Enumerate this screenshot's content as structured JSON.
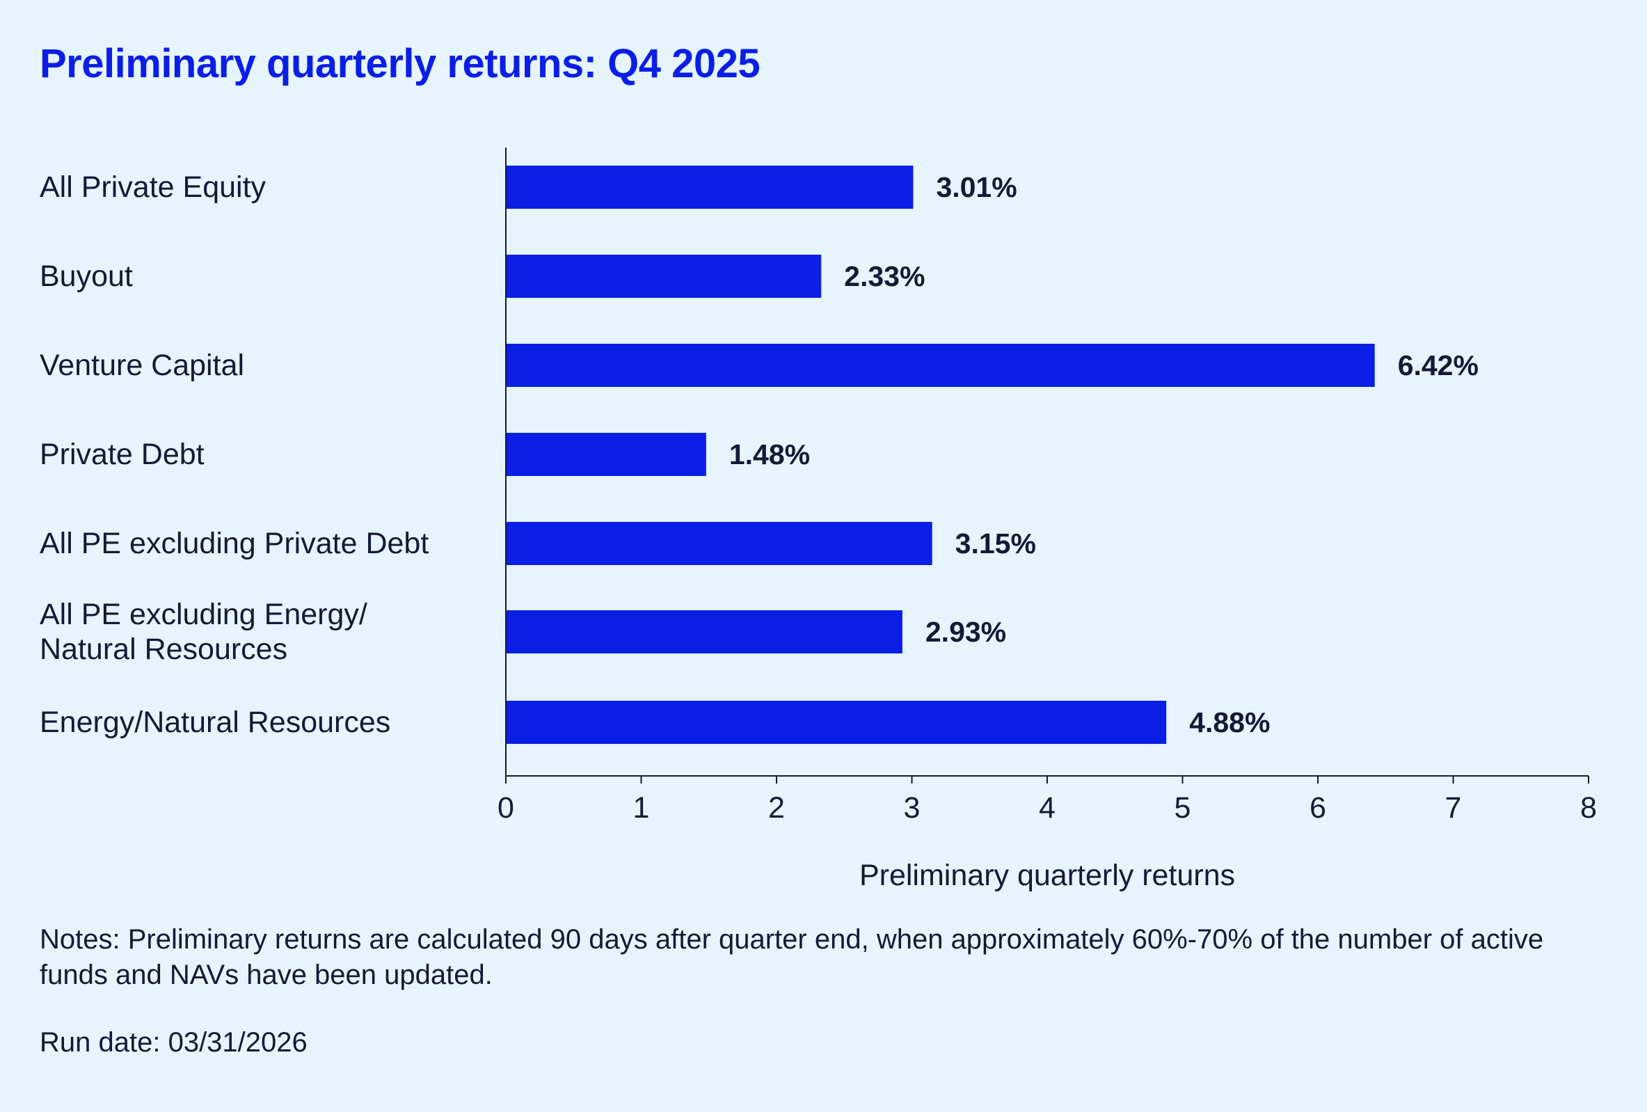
{
  "title": "Preliminary quarterly returns: Q4 2025",
  "notes": "Notes: Preliminary returns are calculated 90 days after quarter end, when approximately 60%-70% of the number of active funds and NAVs have been updated.",
  "run_date": "Run date: 03/31/2026",
  "colors": {
    "bar": "#0a1ee6",
    "title": "#0a1ee6",
    "text": "#141936",
    "background": "#e6f4fd"
  },
  "chart_data": {
    "type": "bar",
    "orientation": "horizontal",
    "title": "Preliminary quarterly returns: Q4 2025",
    "xlabel": "Preliminary quarterly returns",
    "ylabel": "",
    "categories": [
      [
        "All Private Equity"
      ],
      [
        "Buyout"
      ],
      [
        "Venture Capital"
      ],
      [
        "Private Debt"
      ],
      [
        "All PE excluding Private Debt"
      ],
      [
        "All PE excluding Energy/",
        "Natural Resources"
      ],
      [
        "Energy/Natural Resources"
      ]
    ],
    "values": [
      3.01,
      2.33,
      6.42,
      1.48,
      3.15,
      2.93,
      4.88
    ],
    "data_labels": [
      "3.01%",
      "2.33%",
      "6.42%",
      "1.48%",
      "3.15%",
      "2.93%",
      "4.88%"
    ],
    "xlim": [
      0,
      8
    ],
    "xticks": [
      0,
      1,
      2,
      3,
      4,
      5,
      6,
      7,
      8
    ],
    "grid": false,
    "legend": "none"
  }
}
